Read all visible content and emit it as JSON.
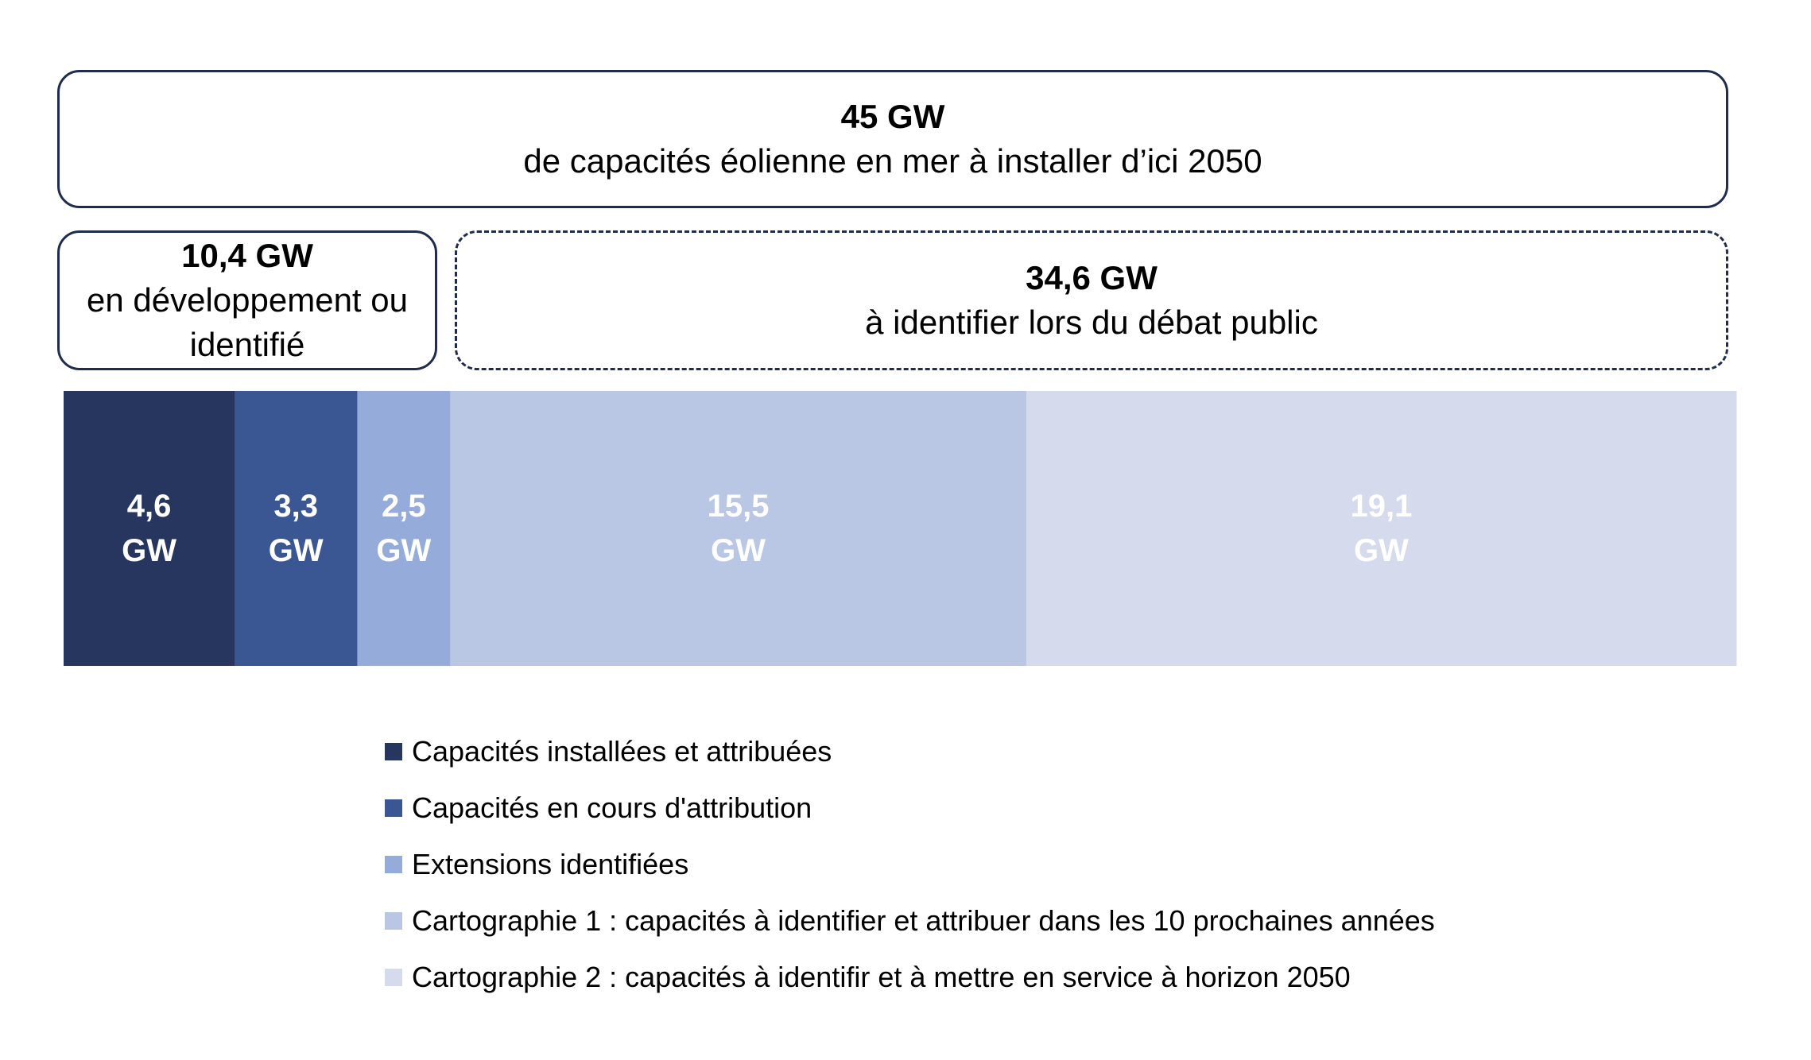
{
  "header": {
    "total_value": "45 GW",
    "total_desc": "de capacités éolienne en mer à installer d’ici 2050"
  },
  "group_left": {
    "value": "10,4 GW",
    "desc_line1": "en développement ou",
    "desc_line2": "identifié"
  },
  "group_right": {
    "value": "34,6 GW",
    "desc": "à identifier lors du débat public"
  },
  "chart_data": {
    "type": "bar",
    "orientation": "horizontal-stacked",
    "unit": "GW",
    "segments": [
      {
        "name": "Capacités installées et attribuées",
        "value": 4.6,
        "label_line1": "4,6",
        "label_line2": "GW",
        "color": "#26365e",
        "label_color": "#ffffff"
      },
      {
        "name": "Capacités en cours d'attribution",
        "value": 3.3,
        "label_line1": "3,3",
        "label_line2": "GW",
        "color": "#3a5794",
        "label_color": "#ffffff"
      },
      {
        "name": "Extensions identifiées",
        "value": 2.5,
        "label_line1": "2,5",
        "label_line2": "GW",
        "color": "#95abda",
        "label_color": "#ffffff"
      },
      {
        "name": "Cartographie 1 : capacités à identifier et attribuer dans les 10 prochaines années",
        "value": 15.5,
        "label_line1": "15,5",
        "label_line2": "GW",
        "color": "#b9c7e4",
        "label_color": "#ffffff"
      },
      {
        "name": "Cartographie 2 : capacités à identifir et à mettre en service à horizon 2050",
        "value": 19.1,
        "label_line1": "19,1",
        "label_line2": "GW",
        "color": "#d5dbec",
        "label_color": "#ffffff"
      }
    ]
  },
  "legend": {
    "items": [
      {
        "label": "Capacités installées et attribuées",
        "color": "#26365e"
      },
      {
        "label": "Capacités en cours d'attribution",
        "color": "#3a5794"
      },
      {
        "label": "Extensions identifiées",
        "color": "#95abda"
      },
      {
        "label": "Cartographie 1 : capacités à identifier et attribuer dans les 10 prochaines années",
        "color": "#b9c7e4"
      },
      {
        "label": "Cartographie 2 : capacités à identifir et à mettre en service à horizon 2050",
        "color": "#d5dbec"
      }
    ]
  }
}
